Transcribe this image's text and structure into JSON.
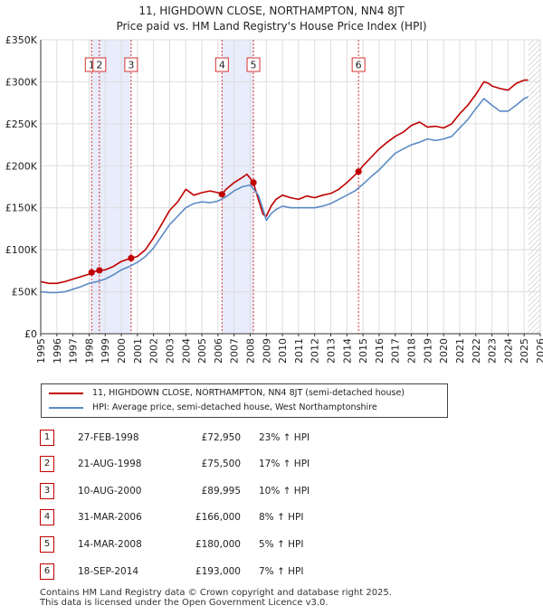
{
  "title": {
    "line1": "11, HIGHDOWN CLOSE, NORTHAMPTON, NN4 8JT",
    "line2": "Price paid vs. HM Land Registry's House Price Index (HPI)"
  },
  "colors": {
    "property": "#c00000",
    "hpi": "#5b8ac6",
    "shade": "#e8ecfb",
    "vline": "#d43030"
  },
  "legend": {
    "property": "11, HIGHDOWN CLOSE, NORTHAMPTON, NN4 8JT (semi-detached house)",
    "hpi": "HPI: Average price, semi-detached house, West Northamptonshire"
  },
  "chart_data": {
    "type": "line",
    "xlim": [
      1995,
      2026
    ],
    "ylim": [
      0,
      350000
    ],
    "y_ticks": [
      0,
      50000,
      100000,
      150000,
      200000,
      250000,
      300000,
      350000
    ],
    "y_tick_labels": [
      "£0",
      "£50K",
      "£100K",
      "£150K",
      "£200K",
      "£250K",
      "£300K",
      "£350K"
    ],
    "x_ticks": [
      1995,
      1996,
      1997,
      1998,
      1999,
      2000,
      2001,
      2002,
      2003,
      2004,
      2005,
      2006,
      2007,
      2008,
      2009,
      2010,
      2011,
      2012,
      2013,
      2014,
      2015,
      2016,
      2017,
      2018,
      2019,
      2020,
      2021,
      2022,
      2023,
      2024,
      2025,
      2026
    ],
    "shaded_spans": [
      [
        1998.15,
        2000.6
      ],
      [
        2006.25,
        2008.2
      ]
    ],
    "future_hatch_start": 2025.25,
    "series": [
      {
        "name": "property",
        "x": [
          1995.0,
          1995.5,
          1996.0,
          1996.5,
          1997.0,
          1997.5,
          1998.0,
          1998.16,
          1998.64,
          1999.0,
          1999.5,
          2000.0,
          2000.61,
          2001.0,
          2001.5,
          2002.0,
          2002.5,
          2003.0,
          2003.5,
          2004.0,
          2004.5,
          2005.0,
          2005.5,
          2006.0,
          2006.25,
          2006.5,
          2007.0,
          2007.5,
          2007.8,
          2008.2,
          2008.5,
          2008.8,
          2009.0,
          2009.3,
          2009.6,
          2010.0,
          2010.5,
          2011.0,
          2011.5,
          2012.0,
          2012.5,
          2013.0,
          2013.5,
          2014.0,
          2014.72,
          2015.0,
          2015.5,
          2016.0,
          2016.5,
          2017.0,
          2017.5,
          2018.0,
          2018.5,
          2019.0,
          2019.5,
          2020.0,
          2020.5,
          2021.0,
          2021.5,
          2022.0,
          2022.5,
          2022.8,
          2023.0,
          2023.5,
          2024.0,
          2024.5,
          2025.0,
          2025.25
        ],
        "y": [
          62000,
          60000,
          60000,
          62000,
          65000,
          68000,
          71000,
          72950,
          75500,
          76000,
          80000,
          86000,
          89995,
          92000,
          100000,
          114000,
          130000,
          147000,
          157000,
          172000,
          165000,
          168000,
          170000,
          168000,
          166000,
          172000,
          180000,
          186000,
          190000,
          180000,
          160000,
          142000,
          140000,
          152000,
          160000,
          165000,
          162000,
          160000,
          164000,
          162000,
          165000,
          167000,
          172000,
          180000,
          193000,
          200000,
          210000,
          220000,
          228000,
          235000,
          240000,
          248000,
          252000,
          246000,
          247000,
          245000,
          250000,
          262000,
          272000,
          285000,
          300000,
          298000,
          295000,
          292000,
          290000,
          298000,
          302000,
          302000
        ]
      },
      {
        "name": "hpi",
        "x": [
          1995.0,
          1995.5,
          1996.0,
          1996.5,
          1997.0,
          1997.5,
          1998.0,
          1998.5,
          1999.0,
          1999.5,
          2000.0,
          2000.5,
          2001.0,
          2001.5,
          2002.0,
          2002.5,
          2003.0,
          2003.5,
          2004.0,
          2004.5,
          2005.0,
          2005.5,
          2006.0,
          2006.5,
          2007.0,
          2007.5,
          2008.0,
          2008.5,
          2008.8,
          2009.0,
          2009.3,
          2009.6,
          2010.0,
          2010.5,
          2011.0,
          2011.5,
          2012.0,
          2012.5,
          2013.0,
          2013.5,
          2014.0,
          2014.5,
          2015.0,
          2015.5,
          2016.0,
          2016.5,
          2017.0,
          2017.5,
          2018.0,
          2018.5,
          2019.0,
          2019.5,
          2020.0,
          2020.5,
          2021.0,
          2021.5,
          2022.0,
          2022.5,
          2023.0,
          2023.5,
          2024.0,
          2024.5,
          2025.0,
          2025.25
        ],
        "y": [
          50000,
          49000,
          49000,
          50000,
          53000,
          56000,
          60000,
          62000,
          65000,
          70000,
          76000,
          80000,
          85000,
          92000,
          102000,
          116000,
          130000,
          140000,
          150000,
          155000,
          157000,
          156000,
          158000,
          163000,
          170000,
          175000,
          177000,
          165000,
          148000,
          135000,
          143000,
          148000,
          152000,
          150000,
          150000,
          150000,
          150000,
          152000,
          155000,
          160000,
          165000,
          170000,
          178000,
          187000,
          195000,
          205000,
          215000,
          220000,
          225000,
          228000,
          232000,
          230000,
          232000,
          235000,
          245000,
          255000,
          268000,
          280000,
          272000,
          265000,
          265000,
          272000,
          280000,
          282000
        ]
      }
    ],
    "sales": [
      {
        "id": "1",
        "x": 1998.16,
        "price": 72950
      },
      {
        "id": "2",
        "x": 1998.64,
        "price": 75500
      },
      {
        "id": "3",
        "x": 2000.61,
        "price": 89995
      },
      {
        "id": "4",
        "x": 2006.25,
        "price": 166000
      },
      {
        "id": "5",
        "x": 2008.2,
        "price": 180000
      },
      {
        "id": "6",
        "x": 2014.72,
        "price": 193000
      }
    ]
  },
  "table": [
    {
      "id": "1",
      "date": "27-FEB-1998",
      "price": "£72,950",
      "pct": "23% ↑ HPI"
    },
    {
      "id": "2",
      "date": "21-AUG-1998",
      "price": "£75,500",
      "pct": "17% ↑ HPI"
    },
    {
      "id": "3",
      "date": "10-AUG-2000",
      "price": "£89,995",
      "pct": "10% ↑ HPI"
    },
    {
      "id": "4",
      "date": "31-MAR-2006",
      "price": "£166,000",
      "pct": "8% ↑ HPI"
    },
    {
      "id": "5",
      "date": "14-MAR-2008",
      "price": "£180,000",
      "pct": "5% ↑ HPI"
    },
    {
      "id": "6",
      "date": "18-SEP-2014",
      "price": "£193,000",
      "pct": "7% ↑ HPI"
    }
  ],
  "footer": {
    "line1": "Contains HM Land Registry data © Crown copyright and database right 2025.",
    "line2": "This data is licensed under the Open Government Licence v3.0."
  }
}
